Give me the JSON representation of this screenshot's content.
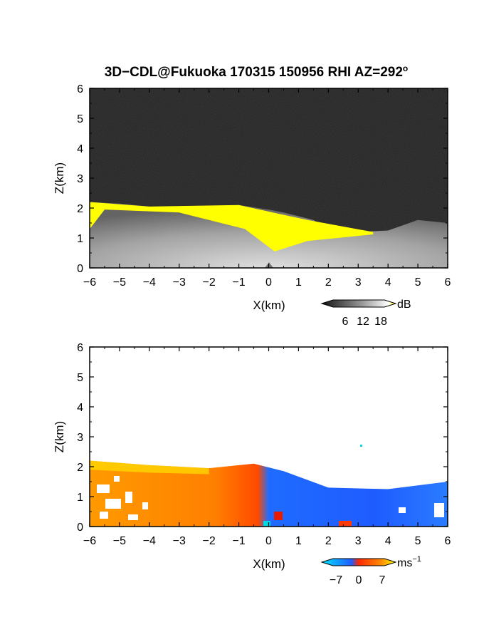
{
  "chart_data": [
    {
      "type": "heatmap",
      "title": "3D−CDL@Fukuoka 170315 150956 RHI AZ=292",
      "title_sup": "o",
      "xlabel": "X(km)",
      "ylabel": "Z(km)",
      "xlim": [
        -6,
        6
      ],
      "ylim": [
        0,
        6
      ],
      "xticks": [
        "−6",
        "−5",
        "−4",
        "−3",
        "−2",
        "−1",
        "0",
        "1",
        "2",
        "3",
        "4",
        "5",
        "6"
      ],
      "yticks": [
        "0",
        "1",
        "2",
        "3",
        "4",
        "5",
        "6"
      ],
      "colorbar": {
        "unit": "dB",
        "ticks": [
          "6",
          "12",
          "18"
        ],
        "range": [
          0,
          20
        ],
        "colors": [
          "#1a1a1a",
          "#ffffff",
          "#ffff00"
        ]
      },
      "echo_top_km": [
        {
          "x": -6.0,
          "z": 2.2
        },
        {
          "x": -5.0,
          "z": 2.15
        },
        {
          "x": -4.0,
          "z": 2.05
        },
        {
          "x": -3.0,
          "z": 2.0
        },
        {
          "x": -2.0,
          "z": 1.95
        },
        {
          "x": -1.0,
          "z": 2.1
        },
        {
          "x": 0.0,
          "z": 1.95
        },
        {
          "x": 0.5,
          "z": 1.85
        },
        {
          "x": 1.5,
          "z": 1.6
        },
        {
          "x": 2.0,
          "z": 1.3
        },
        {
          "x": 3.0,
          "z": 1.2
        },
        {
          "x": 4.0,
          "z": 1.25
        },
        {
          "x": 5.0,
          "z": 1.6
        },
        {
          "x": 6.0,
          "z": 1.5
        }
      ],
      "saturated_region_top_km": [
        {
          "x": -6.0,
          "z": 2.2
        },
        {
          "x": -4.0,
          "z": 2.05
        },
        {
          "x": -1.0,
          "z": 2.1
        },
        {
          "x": 1.3,
          "z": 1.6
        },
        {
          "x": 3.5,
          "z": 1.2
        }
      ],
      "colors": {
        "background_noise": "#1f1f1f",
        "echo": "#bdbdbd",
        "saturated": "#ffff00"
      }
    },
    {
      "type": "heatmap",
      "xlabel": "X(km)",
      "ylabel": "Z(km)",
      "xlim": [
        -6,
        6
      ],
      "ylim": [
        0,
        6
      ],
      "xticks": [
        "−6",
        "−5",
        "−4",
        "−3",
        "−2",
        "−1",
        "0",
        "1",
        "2",
        "3",
        "4",
        "5",
        "6"
      ],
      "yticks": [
        "0",
        "1",
        "2",
        "3",
        "4",
        "5",
        "6"
      ],
      "colorbar": {
        "unit": "ms",
        "unit_sup": "−1",
        "ticks": [
          "−7",
          "0",
          "7"
        ],
        "range": [
          -10,
          10
        ],
        "colors": [
          "#00e5ff",
          "#1f5cff",
          "#ff2a00",
          "#ff8a00",
          "#ffff00"
        ]
      },
      "velocity_field": [
        {
          "x": -6.0,
          "z_top": 2.2,
          "ms": 6.5
        },
        {
          "x": -4.0,
          "z_top": 2.05,
          "ms": 5.0
        },
        {
          "x": -2.0,
          "z_top": 1.95,
          "ms": 4.0
        },
        {
          "x": -0.5,
          "z_top": 2.1,
          "ms": 2.0
        },
        {
          "x": 0.5,
          "z_top": 1.85,
          "ms": -5.5
        },
        {
          "x": 2.0,
          "z_top": 1.3,
          "ms": -6.0
        },
        {
          "x": 4.0,
          "z_top": 1.25,
          "ms": -6.0
        },
        {
          "x": 6.0,
          "z_top": 1.5,
          "ms": -5.5
        }
      ],
      "colors": {
        "positive": "#ff6a00",
        "negative": "#1f5cff",
        "near_zero": "#ff2a00"
      }
    }
  ]
}
